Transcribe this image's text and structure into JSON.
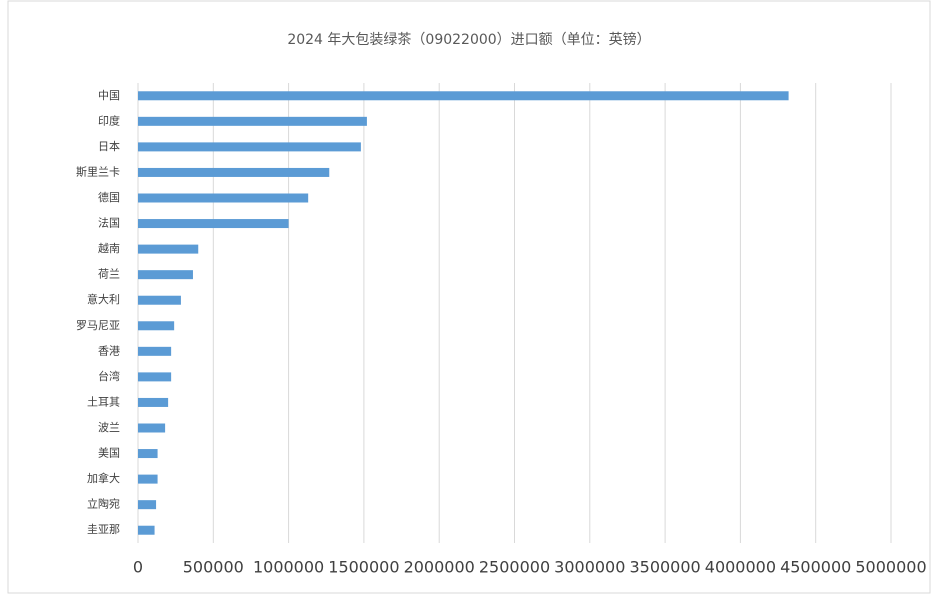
{
  "chart_data": {
    "type": "hbar",
    "title": "2024 年大包装绿茶（09022000）进口额（单位：英镑）",
    "categories": [
      "中国",
      "印度",
      "日本",
      "斯里兰卡",
      "德国",
      "法国",
      "越南",
      "荷兰",
      "意大利",
      "罗马尼亚",
      "香港",
      "台湾",
      "土耳其",
      "波兰",
      "美国",
      "加拿大",
      "立陶宛",
      "圭亚那"
    ],
    "values": [
      4320000,
      1520000,
      1480000,
      1270000,
      1130000,
      1000000,
      400000,
      365000,
      285000,
      240000,
      220000,
      220000,
      200000,
      180000,
      130000,
      130000,
      120000,
      110000
    ],
    "color": "#5b9bd5",
    "xlim": [
      0,
      5000000
    ],
    "xticks": [
      0,
      500000,
      1000000,
      1500000,
      2000000,
      2500000,
      3000000,
      3500000,
      4000000,
      4500000,
      5000000
    ],
    "grid": true
  }
}
